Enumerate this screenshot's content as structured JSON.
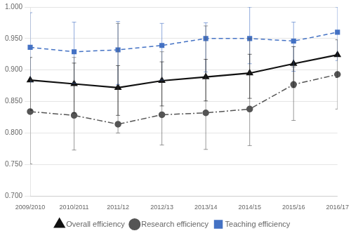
{
  "chart_data": {
    "type": "line",
    "categories": [
      "2009/2010",
      "2010/2011",
      "2011/12",
      "2012/13",
      "2013/14",
      "2014/15",
      "2015/16",
      "2016/17"
    ],
    "series": [
      {
        "name": "Teaching efficiency",
        "color": "#4472C4",
        "marker": "square",
        "line_style": "dashed",
        "values": [
          0.936,
          0.929,
          0.932,
          0.939,
          0.95,
          0.95,
          0.946,
          0.96
        ],
        "yerr_lo": [
          0.055,
          0.05,
          0.055,
          0.055,
          0.053,
          0.04,
          0.048,
          0.045
        ],
        "yerr_hi": [
          0.055,
          0.047,
          0.045,
          0.035,
          0.025,
          0.05,
          0.03,
          0.04
        ]
      },
      {
        "name": "Research efficiency",
        "color": "#555555",
        "marker": "circle",
        "line_style": "dashdot",
        "values": [
          0.834,
          0.828,
          0.814,
          0.829,
          0.832,
          0.838,
          0.877,
          0.893
        ],
        "yerr_lo": [
          0.083,
          0.055,
          0.014,
          0.048,
          0.058,
          0.058,
          0.057,
          0.055
        ],
        "yerr_hi": [
          0.05,
          0.092,
          0.16,
          0.1,
          0.138,
          0.112,
          0.028,
          0.003
        ]
      },
      {
        "name": "Overall efficiency",
        "color": "#111111",
        "marker": "triangle",
        "line_style": "solid",
        "values": [
          0.884,
          0.878,
          0.872,
          0.883,
          0.889,
          0.895,
          0.91,
          0.924
        ],
        "yerr_lo": [
          0.048,
          0.046,
          0.044,
          0.04,
          0.038,
          0.04,
          0.038,
          0.036
        ],
        "yerr_hi": [
          0.036,
          0.033,
          0.035,
          0.03,
          0.028,
          0.03,
          0.027,
          0.024
        ]
      }
    ],
    "ylim": [
      0.7,
      1.0
    ],
    "yticks": [
      {
        "value": 0.7,
        "label": "0.700"
      },
      {
        "value": 0.75,
        "label": "0.750"
      },
      {
        "value": 0.8,
        "label": "0.800"
      },
      {
        "value": 0.85,
        "label": "0.850"
      },
      {
        "value": 0.9,
        "label": "0.900"
      },
      {
        "value": 0.95,
        "label": "0.950"
      },
      {
        "value": 1.0,
        "label": "1.000"
      }
    ],
    "grid": "y",
    "legend": "bottom"
  }
}
